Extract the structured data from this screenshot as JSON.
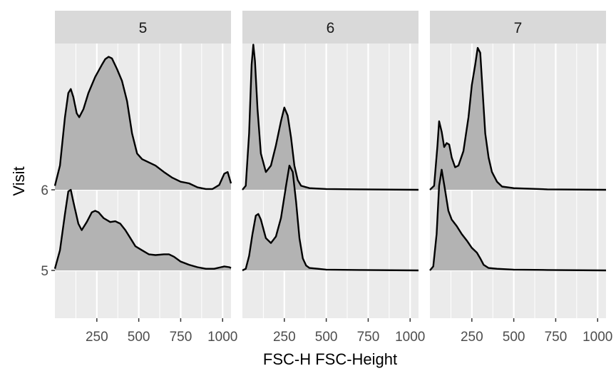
{
  "chart_data": {
    "type": "ridgeline",
    "xlabel": "FSC-H FSC-Height",
    "ylabel": "Visit",
    "x_ticks": [
      250,
      500,
      750,
      1000
    ],
    "x_tick_labels": [
      "250",
      "500",
      "750",
      "1000"
    ],
    "xlim": [
      0,
      1050
    ],
    "y_categories": [
      "5",
      "6"
    ],
    "ylim": [
      4.42,
      7.7
    ],
    "grid": true,
    "legend": "none",
    "colors": {
      "panel_bg": "#ebebeb",
      "strip_bg": "#d9d9d9",
      "grid": "#ffffff",
      "fill": "#b3b3b3",
      "line": "#000000",
      "text": "#1a1a1a",
      "tick_text": "#4d4d4d"
    },
    "panels": [
      {
        "strip": "5",
        "ridges": [
          {
            "visit": "5",
            "points": [
              [
                0,
                0.02
              ],
              [
                30,
                0.25
              ],
              [
                60,
                0.7
              ],
              [
                80,
                0.98
              ],
              [
                95,
                1.0
              ],
              [
                110,
                0.85
              ],
              [
                140,
                0.58
              ],
              [
                160,
                0.5
              ],
              [
                190,
                0.6
              ],
              [
                220,
                0.72
              ],
              [
                240,
                0.74
              ],
              [
                260,
                0.72
              ],
              [
                290,
                0.65
              ],
              [
                330,
                0.6
              ],
              [
                360,
                0.61
              ],
              [
                390,
                0.58
              ],
              [
                420,
                0.5
              ],
              [
                450,
                0.4
              ],
              [
                480,
                0.3
              ],
              [
                520,
                0.25
              ],
              [
                560,
                0.2
              ],
              [
                600,
                0.19
              ],
              [
                650,
                0.2
              ],
              [
                680,
                0.2
              ],
              [
                710,
                0.17
              ],
              [
                750,
                0.11
              ],
              [
                800,
                0.07
              ],
              [
                850,
                0.04
              ],
              [
                900,
                0.02
              ],
              [
                950,
                0.02
              ],
              [
                990,
                0.04
              ],
              [
                1010,
                0.05
              ],
              [
                1040,
                0.04
              ],
              [
                1050,
                0.03
              ]
            ]
          },
          {
            "visit": "6",
            "points": [
              [
                0,
                0.05
              ],
              [
                30,
                0.3
              ],
              [
                60,
                0.9
              ],
              [
                80,
                1.2
              ],
              [
                95,
                1.25
              ],
              [
                110,
                1.15
              ],
              [
                130,
                0.95
              ],
              [
                145,
                0.9
              ],
              [
                170,
                1.0
              ],
              [
                200,
                1.2
              ],
              [
                240,
                1.4
              ],
              [
                280,
                1.55
              ],
              [
                300,
                1.62
              ],
              [
                320,
                1.65
              ],
              [
                340,
                1.63
              ],
              [
                370,
                1.5
              ],
              [
                400,
                1.35
              ],
              [
                430,
                1.1
              ],
              [
                460,
                0.7
              ],
              [
                490,
                0.45
              ],
              [
                520,
                0.38
              ],
              [
                560,
                0.34
              ],
              [
                600,
                0.3
              ],
              [
                650,
                0.22
              ],
              [
                700,
                0.15
              ],
              [
                750,
                0.1
              ],
              [
                800,
                0.08
              ],
              [
                850,
                0.03
              ],
              [
                900,
                0.01
              ],
              [
                940,
                0.01
              ],
              [
                980,
                0.06
              ],
              [
                1010,
                0.2
              ],
              [
                1030,
                0.22
              ],
              [
                1050,
                0.08
              ]
            ]
          }
        ]
      },
      {
        "strip": "6",
        "ridges": [
          {
            "visit": "5",
            "points": [
              [
                0,
                0.0
              ],
              [
                20,
                0.02
              ],
              [
                40,
                0.18
              ],
              [
                60,
                0.45
              ],
              [
                80,
                0.68
              ],
              [
                95,
                0.7
              ],
              [
                110,
                0.63
              ],
              [
                140,
                0.4
              ],
              [
                170,
                0.34
              ],
              [
                200,
                0.42
              ],
              [
                230,
                0.65
              ],
              [
                260,
                1.05
              ],
              [
                280,
                1.3
              ],
              [
                300,
                1.22
              ],
              [
                320,
                0.85
              ],
              [
                340,
                0.4
              ],
              [
                360,
                0.15
              ],
              [
                380,
                0.06
              ],
              [
                400,
                0.03
              ],
              [
                450,
                0.02
              ],
              [
                500,
                0.01
              ],
              [
                700,
                0.005
              ],
              [
                1050,
                0.0
              ]
            ]
          },
          {
            "visit": "6",
            "points": [
              [
                0,
                0.0
              ],
              [
                20,
                0.05
              ],
              [
                40,
                0.7
              ],
              [
                55,
                1.55
              ],
              [
                65,
                1.8
              ],
              [
                75,
                1.6
              ],
              [
                90,
                1.0
              ],
              [
                110,
                0.45
              ],
              [
                140,
                0.22
              ],
              [
                170,
                0.3
              ],
              [
                200,
                0.55
              ],
              [
                230,
                0.85
              ],
              [
                250,
                1.02
              ],
              [
                270,
                0.92
              ],
              [
                290,
                0.65
              ],
              [
                310,
                0.3
              ],
              [
                330,
                0.12
              ],
              [
                350,
                0.05
              ],
              [
                400,
                0.02
              ],
              [
                500,
                0.01
              ],
              [
                700,
                0.005
              ],
              [
                1050,
                0.0
              ]
            ]
          }
        ]
      },
      {
        "strip": "7",
        "ridges": [
          {
            "visit": "5",
            "points": [
              [
                0,
                0.0
              ],
              [
                20,
                0.05
              ],
              [
                40,
                0.45
              ],
              [
                55,
                1.05
              ],
              [
                70,
                1.25
              ],
              [
                90,
                1.0
              ],
              [
                110,
                0.74
              ],
              [
                130,
                0.63
              ],
              [
                160,
                0.55
              ],
              [
                190,
                0.45
              ],
              [
                220,
                0.37
              ],
              [
                250,
                0.28
              ],
              [
                280,
                0.22
              ],
              [
                300,
                0.15
              ],
              [
                320,
                0.07
              ],
              [
                350,
                0.03
              ],
              [
                400,
                0.02
              ],
              [
                500,
                0.01
              ],
              [
                700,
                0.005
              ],
              [
                1050,
                0.0
              ]
            ]
          },
          {
            "visit": "6",
            "points": [
              [
                0,
                0.0
              ],
              [
                25,
                0.05
              ],
              [
                45,
                0.55
              ],
              [
                55,
                0.85
              ],
              [
                70,
                0.72
              ],
              [
                85,
                0.53
              ],
              [
                100,
                0.58
              ],
              [
                115,
                0.56
              ],
              [
                130,
                0.4
              ],
              [
                150,
                0.28
              ],
              [
                170,
                0.3
              ],
              [
                200,
                0.48
              ],
              [
                230,
                0.9
              ],
              [
                250,
                1.3
              ],
              [
                270,
                1.55
              ],
              [
                285,
                1.76
              ],
              [
                300,
                1.7
              ],
              [
                315,
                1.2
              ],
              [
                330,
                0.7
              ],
              [
                350,
                0.4
              ],
              [
                370,
                0.22
              ],
              [
                400,
                0.1
              ],
              [
                430,
                0.04
              ],
              [
                500,
                0.02
              ],
              [
                700,
                0.005
              ],
              [
                1050,
                0.0
              ]
            ]
          }
        ]
      }
    ]
  }
}
